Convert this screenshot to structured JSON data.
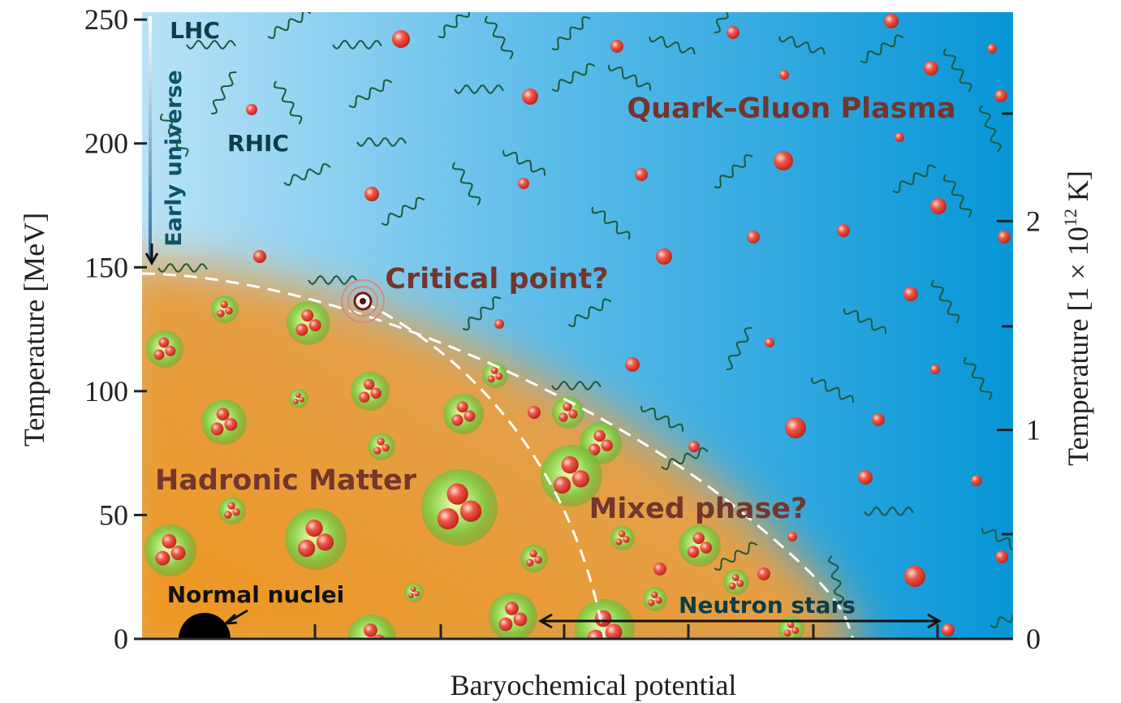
{
  "axes": {
    "left": {
      "label": "Temperature [MeV]",
      "range": [
        0,
        253
      ],
      "ticks": [
        0,
        50,
        100,
        150,
        200,
        250
      ]
    },
    "right": {
      "label": {
        "text": "Temperature [1 × 10",
        "exponent": "12",
        "unit": " K]"
      },
      "range": [
        0,
        3
      ],
      "ticks": [
        0,
        1,
        2
      ]
    },
    "bottom": {
      "label": "Baryochemical potential"
    }
  },
  "labels": {
    "lhc": "LHC",
    "rhic": "RHIC",
    "early_universe": "Early universe",
    "qgp": "Quark–Gluon Plasma",
    "critical_point": "Critical point?",
    "hadronic_matter": "Hadronic Matter",
    "mixed_phase": "Mixed phase?",
    "normal_nuclei": "Normal nuclei",
    "neutron_stars": "Neutron stars"
  }
}
